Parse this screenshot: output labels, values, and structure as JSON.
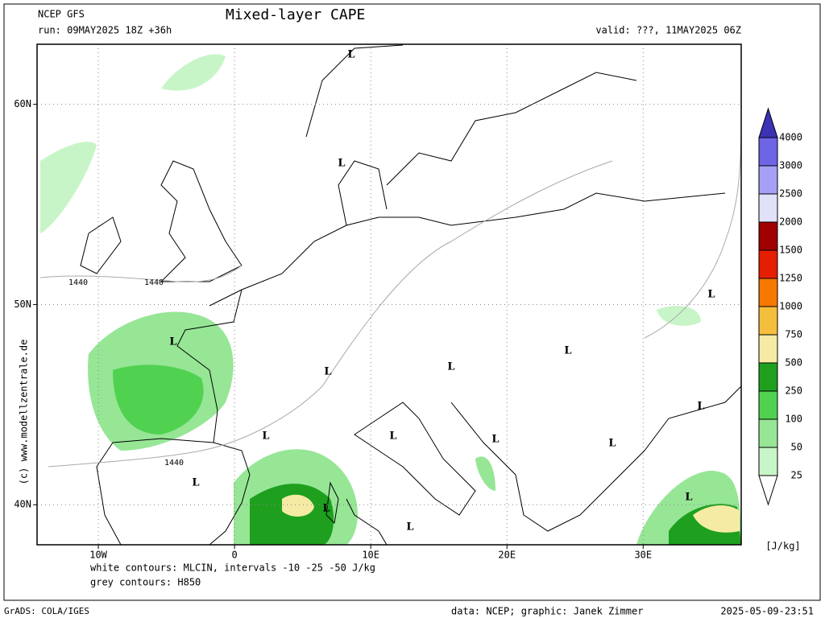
{
  "header": {
    "model": "NCEP GFS",
    "run": "run: 09MAY2025 18Z +36h",
    "title": "Mixed-layer CAPE",
    "valid": "valid: ???, 11MAY2025 06Z"
  },
  "map": {
    "xlim": [
      -14.5,
      37.2
    ],
    "ylim": [
      38,
      63
    ],
    "xticks": [
      {
        "value": -10,
        "label": "10W"
      },
      0,
      {
        "value": 10,
        "label": "10E"
      },
      {
        "value": 20,
        "label": "20E"
      },
      {
        "value": 30,
        "label": "30E"
      }
    ],
    "yticks": [
      {
        "value": 40,
        "label": "40N"
      },
      {
        "value": 50,
        "label": "50N"
      },
      {
        "value": 60,
        "label": "60N"
      }
    ],
    "grid": true,
    "low_label": "L",
    "contour_label": "1440"
  },
  "colorbar": {
    "levels": [
      25,
      50,
      100,
      250,
      500,
      750,
      1000,
      1250,
      1500,
      2000,
      2500,
      3000,
      4000
    ],
    "colors": [
      "#ffffff",
      "#c8f5c8",
      "#96e696",
      "#50d250",
      "#1ea01e",
      "#f5eba5",
      "#f5be3c",
      "#f57800",
      "#e61e00",
      "#a00000",
      "#e1e1fa",
      "#a5a0f5",
      "#6e64e6",
      "#3c32b4"
    ],
    "unit": "[J/kg]"
  },
  "notes": {
    "mlcin": "white contours: MLCIN, intervals -10 -25 -50 J/kg",
    "h850": "grey contours: H850",
    "copyright": "(c) www.modellzentrale.de"
  },
  "footer": {
    "software": "GrADS: COLA/IGES",
    "credit": "data: NCEP; graphic: Janek Zimmer",
    "timestamp": "2025-05-09-23:51"
  }
}
